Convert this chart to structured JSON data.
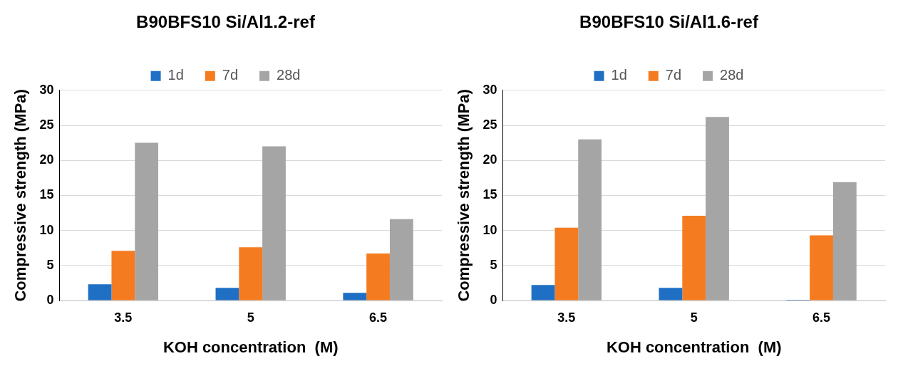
{
  "chart_data": [
    {
      "type": "bar",
      "title": "B90BFS10 Si/Al1.2-ref",
      "xlabel": "KOH concentration  (M)",
      "ylabel": "Compressive strength (MPa)",
      "categories": [
        "3.5",
        "5",
        "6.5"
      ],
      "series": [
        {
          "name": "1d",
          "color": "#1f6fc5",
          "values": [
            2.3,
            1.8,
            1.1
          ]
        },
        {
          "name": "7d",
          "color": "#f47b20",
          "values": [
            7.1,
            7.6,
            6.7
          ]
        },
        {
          "name": "28d",
          "color": "#a5a5a5",
          "values": [
            22.5,
            22.0,
            11.6
          ]
        }
      ],
      "ylim": [
        0,
        30
      ],
      "yticks": [
        0,
        5,
        10,
        15,
        20,
        25,
        30
      ],
      "grid": "y",
      "legend": "top"
    },
    {
      "type": "bar",
      "title": "B90BFS10 Si/Al1.6-ref",
      "xlabel": "KOH concentration  (M)",
      "ylabel": "Compressive strength (MPa)",
      "categories": [
        "3.5",
        "5",
        "6.5"
      ],
      "series": [
        {
          "name": "1d",
          "color": "#1f6fc5",
          "values": [
            2.2,
            1.8,
            0.1
          ]
        },
        {
          "name": "7d",
          "color": "#f47b20",
          "values": [
            10.4,
            12.1,
            9.3
          ]
        },
        {
          "name": "28d",
          "color": "#a5a5a5",
          "values": [
            23.0,
            26.2,
            16.9
          ]
        }
      ],
      "ylim": [
        0,
        30
      ],
      "yticks": [
        0,
        5,
        10,
        15,
        20,
        25,
        30
      ],
      "grid": "y",
      "legend": "top"
    }
  ]
}
